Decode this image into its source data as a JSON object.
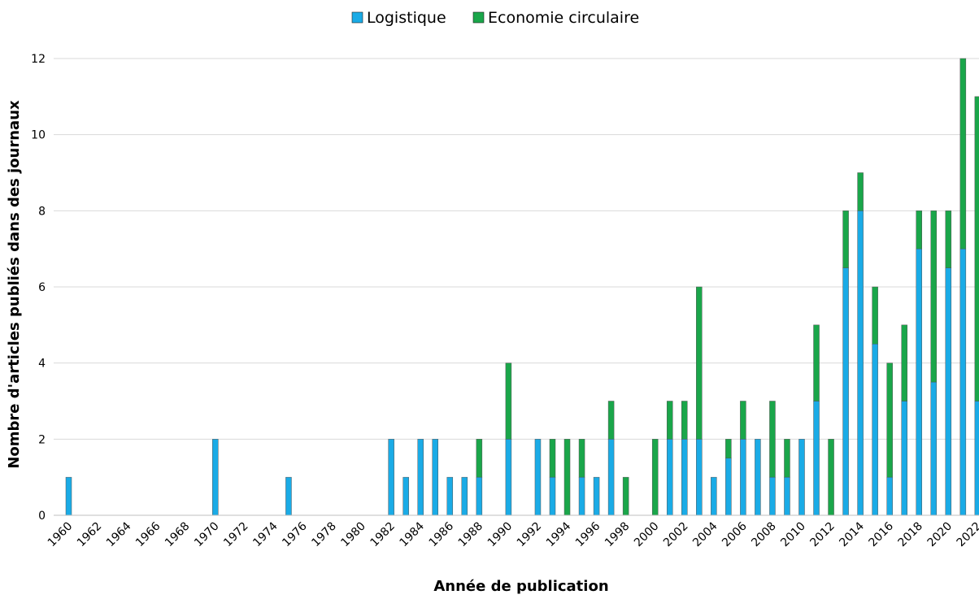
{
  "chart_data": {
    "type": "bar",
    "stacked": true,
    "xlabel": "Année de publication",
    "ylabel": "Nombre d'articles publiés dans des journaux",
    "ylim": [
      0,
      12
    ],
    "yticks": [
      "0",
      "2",
      "4",
      "6",
      "8",
      "10",
      "12"
    ],
    "grid": true,
    "legend_position": "top",
    "categories": [
      1960,
      1961,
      1962,
      1963,
      1964,
      1965,
      1966,
      1967,
      1968,
      1969,
      1970,
      1971,
      1972,
      1973,
      1974,
      1975,
      1976,
      1977,
      1978,
      1979,
      1980,
      1981,
      1982,
      1983,
      1984,
      1985,
      1986,
      1987,
      1988,
      1989,
      1990,
      1991,
      1992,
      1993,
      1994,
      1995,
      1996,
      1997,
      1998,
      1999,
      2000,
      2001,
      2002,
      2003,
      2004,
      2005,
      2006,
      2007,
      2008,
      2009,
      2010,
      2011,
      2012,
      2013,
      2014,
      2015,
      2016,
      2017,
      2018,
      2019,
      2020,
      2021,
      2022
    ],
    "xtick_labels": [
      "1960",
      "1962",
      "1964",
      "1966",
      "1968",
      "1970",
      "1972",
      "1974",
      "1976",
      "1978",
      "1980",
      "1982",
      "1984",
      "1986",
      "1988",
      "1990",
      "1992",
      "1994",
      "1996",
      "1998",
      "2000",
      "2002",
      "2004",
      "2006",
      "2008",
      "2010",
      "2012",
      "2014",
      "2016",
      "2018",
      "2020",
      "2022"
    ],
    "series": [
      {
        "name": "Logistique",
        "color": "#1aabe6",
        "values": [
          1,
          0,
          0,
          0,
          0,
          0,
          0,
          0,
          0,
          0,
          2,
          0,
          0,
          0,
          0,
          1,
          0,
          0,
          0,
          0,
          0,
          0,
          2,
          1,
          2,
          2,
          1,
          1,
          1,
          0,
          2,
          0,
          2,
          1,
          0,
          1,
          1,
          2,
          0,
          0,
          0,
          2,
          2,
          2,
          1,
          1.5,
          2,
          2,
          1,
          1,
          2,
          3,
          0,
          6.5,
          8,
          4.5,
          1,
          3,
          7,
          3.5,
          6.5,
          7,
          3
        ]
      },
      {
        "name": "Economie circulaire",
        "color": "#1aa64a",
        "values": [
          0,
          0,
          0,
          0,
          0,
          0,
          0,
          0,
          0,
          0,
          0,
          0,
          0,
          0,
          0,
          0,
          0,
          0,
          0,
          0,
          0,
          0,
          0,
          0,
          0,
          0,
          0,
          0,
          1,
          0,
          2,
          0,
          0,
          1,
          2,
          1,
          0,
          1,
          1,
          0,
          2,
          1,
          1,
          4,
          0,
          0.5,
          1,
          0,
          2,
          1,
          0,
          2,
          2,
          1.5,
          1,
          1.5,
          3,
          2,
          1,
          4.5,
          1.5,
          5,
          8
        ]
      }
    ]
  }
}
